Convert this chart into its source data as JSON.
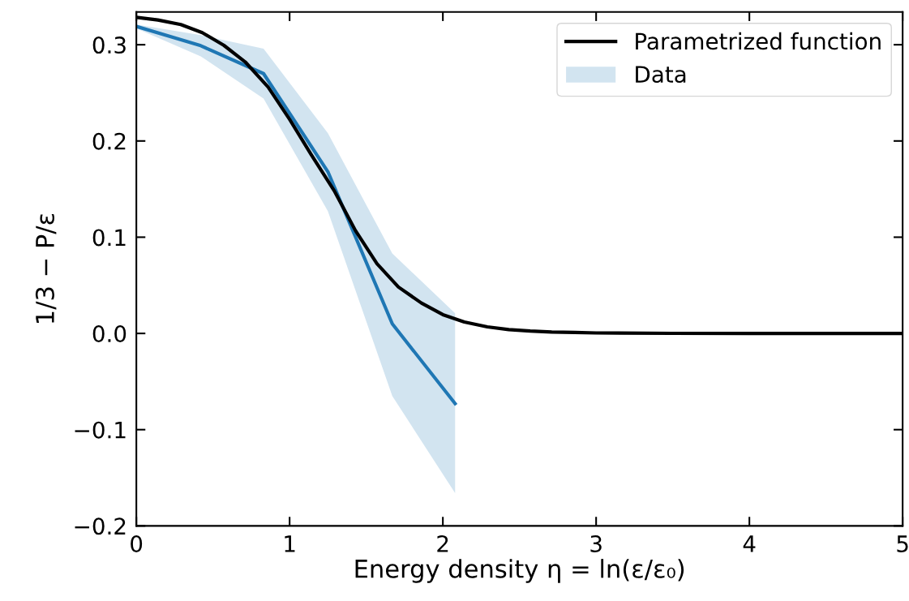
{
  "chart_data": {
    "type": "line",
    "xlabel": "Energy density η = ln(ε/ε₀)",
    "ylabel": "1/3 − P/ε",
    "xlim": [
      0,
      5
    ],
    "ylim": [
      -0.2,
      0.334
    ],
    "xticks": [
      0,
      1,
      2,
      3,
      4,
      5
    ],
    "yticks": [
      {
        "value": -0.2,
        "label": "−0.2"
      },
      {
        "value": -0.1,
        "label": "−0.1"
      },
      {
        "value": 0.0,
        "label": "0.0"
      },
      {
        "value": 0.1,
        "label": "0.1"
      },
      {
        "value": 0.2,
        "label": "0.2"
      },
      {
        "value": 0.3,
        "label": "0.3"
      }
    ],
    "grid": false,
    "legend": "top right",
    "marker": "none",
    "line_style": "solid",
    "series": [
      {
        "name": "Parametrized function",
        "color": "#000000",
        "x": [
          0,
          0.14,
          0.29,
          0.43,
          0.57,
          0.71,
          0.86,
          1.0,
          1.14,
          1.29,
          1.43,
          1.57,
          1.71,
          1.86,
          2.0,
          2.14,
          2.29,
          2.43,
          2.57,
          2.71,
          2.86,
          3.0,
          3.5,
          4.0,
          4.5,
          5.0
        ],
        "values": [
          0.3285,
          0.3257,
          0.321,
          0.3126,
          0.2995,
          0.2822,
          0.256,
          0.2225,
          0.186,
          0.1486,
          0.1068,
          0.0724,
          0.0482,
          0.0316,
          0.0195,
          0.0119,
          0.0068,
          0.004,
          0.0025,
          0.0015,
          0.001,
          0.0005,
          0.0001,
          0.0,
          0.0,
          0.0
        ]
      },
      {
        "name": "Data",
        "color": "#1f77b4",
        "x": [
          0,
          0.42,
          0.83,
          1.25,
          1.67,
          2.08
        ],
        "values": [
          0.319,
          0.299,
          0.27,
          0.168,
          0.01,
          -0.073
        ],
        "lower": [
          0.317,
          0.288,
          0.244,
          0.127,
          -0.065,
          -0.166
        ],
        "upper": [
          0.321,
          0.31,
          0.296,
          0.208,
          0.083,
          0.021
        ]
      }
    ]
  }
}
